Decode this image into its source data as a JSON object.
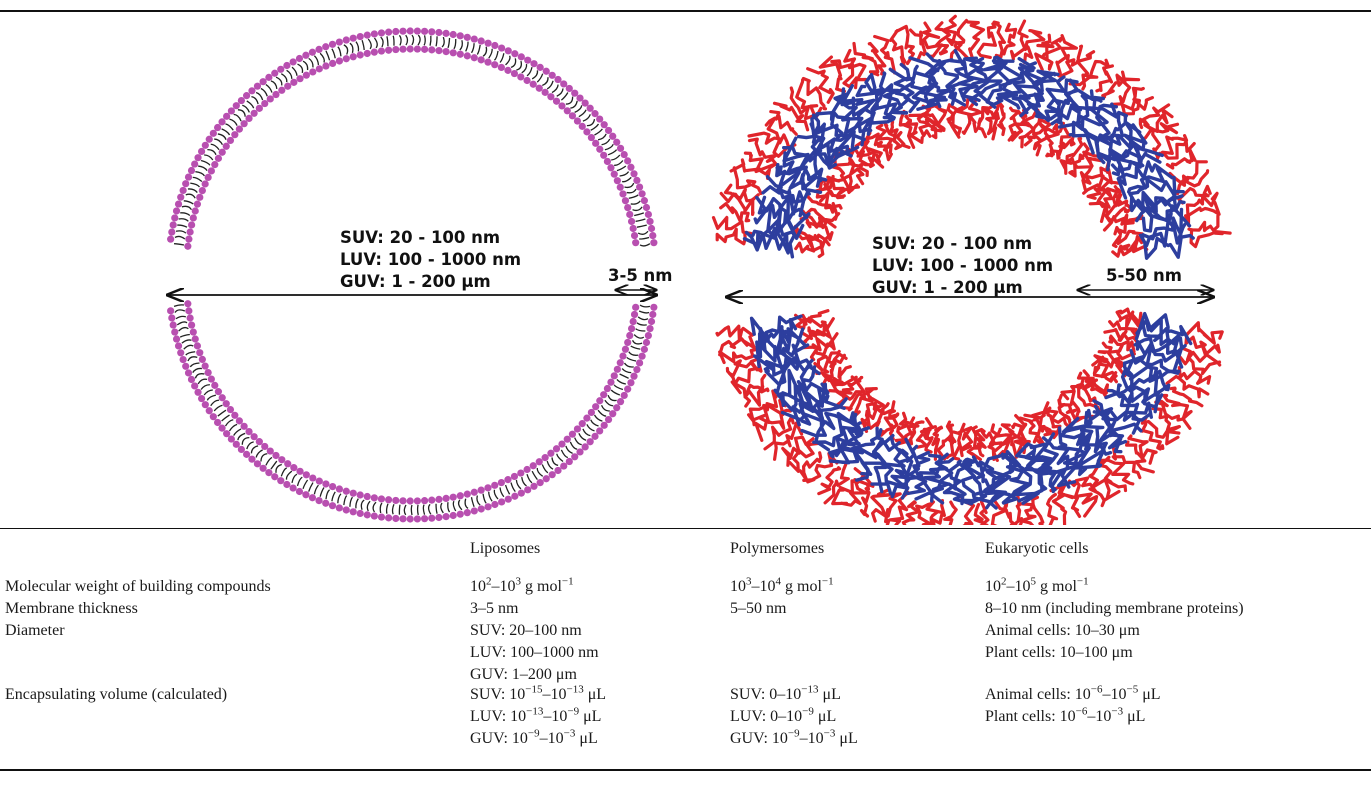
{
  "figure": {
    "liposome": {
      "line1": "SUV: 20 - 100 nm",
      "line2": "LUV: 100 - 1000 nm",
      "line3": "GUV: 1 - 200 µm",
      "thickness": "3-5 nm"
    },
    "polymersome": {
      "line1": "SUV: 20 - 100 nm",
      "line2": "LUV: 100 - 1000 nm",
      "line3": "GUV: 1 - 200 µm",
      "thickness": "5-50 nm"
    },
    "colors": {
      "lipid_head": "#b84fb0",
      "lipid_tail": "#222222",
      "polymer_hydrophilic": "#e0252b",
      "polymer_hydrophobic": "#2d3e9e"
    }
  },
  "table": {
    "headers": [
      "",
      "Liposomes",
      "Polymersomes",
      "Eukaryotic cells"
    ],
    "mw": {
      "label": "Molecular weight of building compounds",
      "lipo": {
        "a": "10",
        "ae": "2",
        "b": "–10",
        "be": "3",
        "c": " g mol",
        "ce": "−1"
      },
      "poly": {
        "a": "10",
        "ae": "3",
        "b": "–10",
        "be": "4",
        "c": " g mol",
        "ce": "−1"
      },
      "cell": {
        "a": "10",
        "ae": "2",
        "b": "–10",
        "be": "5",
        "c": " g mol",
        "ce": "−1"
      }
    },
    "thickness": {
      "label": "Membrane thickness",
      "lipo": "3–5 nm",
      "poly": "5–50 nm",
      "cell": "8–10 nm (including membrane proteins)"
    },
    "diameter": {
      "label": "Diameter",
      "lipo": [
        "SUV: 20–100 nm",
        "LUV: 100–1000 nm",
        "GUV: 1–200 μm"
      ],
      "cell": [
        "Animal cells: 10–30 μm",
        "Plant cells: 10–100 μm"
      ]
    },
    "volume": {
      "label": "Encapsulating volume (calculated)",
      "lipo": [
        {
          "p": "SUV: 10",
          "e1": "−15",
          "m": "–10",
          "e2": "−13",
          "s": " μL"
        },
        {
          "p": "LUV: 10",
          "e1": "−13",
          "m": "–10",
          "e2": "−9",
          "s": " μL"
        },
        {
          "p": "GUV: 10",
          "e1": "−9",
          "m": "–10",
          "e2": "−3",
          "s": " μL"
        }
      ],
      "poly": [
        {
          "p": "SUV: 0–10",
          "e1": "−13",
          "s": " μL"
        },
        {
          "p": "LUV: 0–10",
          "e1": "−9",
          "s": " μL"
        },
        {
          "p": "GUV: 10",
          "e1": "−9",
          "m": "–10",
          "e2": "−3",
          "s": " μL"
        }
      ],
      "cell": [
        {
          "p": "Animal cells: 10",
          "e1": "−6",
          "m": "–10",
          "e2": "−5",
          "s": " μL"
        },
        {
          "p": "Plant cells: 10",
          "e1": "−6",
          "m": "–10",
          "e2": "−3",
          "s": " μL"
        }
      ]
    }
  }
}
